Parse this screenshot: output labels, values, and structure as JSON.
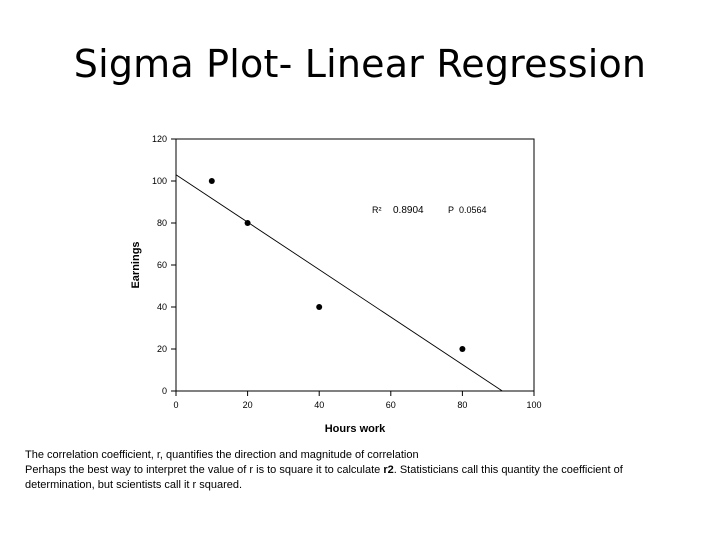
{
  "slide": {
    "title": "Sigma Plot- Linear Regression"
  },
  "chart_data": {
    "type": "scatter",
    "xlabel": "Hours work",
    "ylabel": "Earnings",
    "xlim": [
      0,
      100
    ],
    "ylim": [
      0,
      120
    ],
    "xticks": [
      0,
      20,
      40,
      60,
      80,
      100
    ],
    "yticks": [
      0,
      20,
      40,
      60,
      80,
      100,
      120
    ],
    "points": [
      {
        "x": 10,
        "y": 100
      },
      {
        "x": 20,
        "y": 80
      },
      {
        "x": 40,
        "y": 40
      },
      {
        "x": 80,
        "y": 20
      }
    ],
    "regression": {
      "intercept": 103,
      "slope": -1.13
    },
    "annotations": {
      "r2_label": "R²",
      "r2_value": "0.8904",
      "p_label": "P",
      "p_value": "0.0564"
    },
    "grid": false,
    "legend": "none"
  },
  "caption": {
    "line1": "The correlation coefficient, r, quantifies the direction and magnitude of correlation",
    "line2_before": "Perhaps the best way to interpret the value of r is to square it to calculate ",
    "line2_bold": "r2",
    "line2_after": ". Statisticians call this quantity the coefficient of determination, but scientists call it r squared."
  }
}
